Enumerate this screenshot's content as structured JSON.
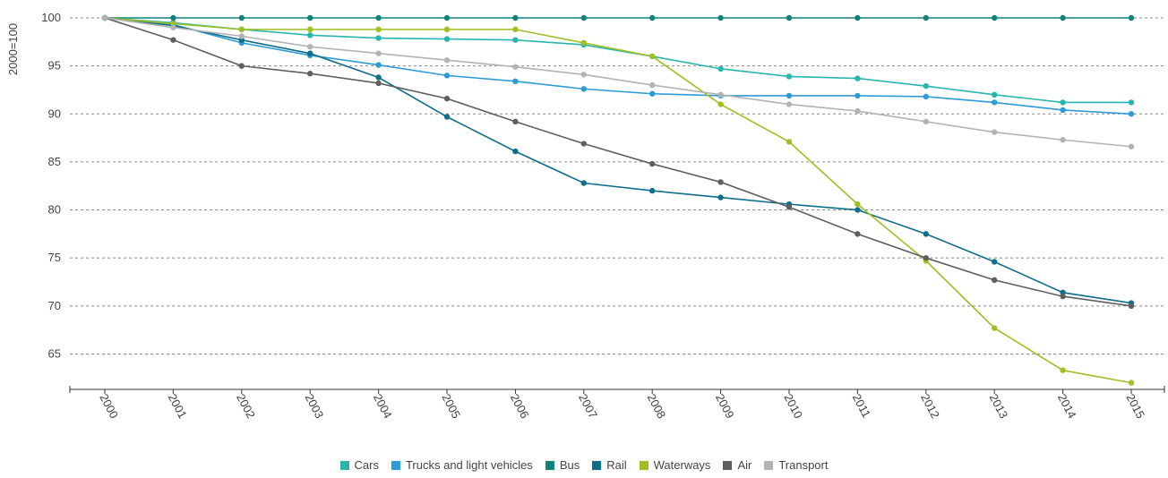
{
  "chart_data": {
    "type": "line",
    "ylabel": "2000=100",
    "xlabel": "",
    "x": [
      "2000",
      "2001",
      "2002",
      "2003",
      "2004",
      "2005",
      "2006",
      "2007",
      "2008",
      "2009",
      "2010",
      "2011",
      "2012",
      "2013",
      "2014",
      "2015"
    ],
    "yticks": [
      65,
      70,
      75,
      80,
      85,
      90,
      95,
      100
    ],
    "ylim": [
      61.5,
      100
    ],
    "grid": "horizontal-dashed",
    "legend_position": "bottom",
    "series": [
      {
        "name": "Cars",
        "color": "#27b5ae",
        "values": [
          100,
          99.5,
          98.8,
          98.2,
          97.9,
          97.8,
          97.7,
          97.2,
          96.0,
          94.7,
          93.9,
          93.7,
          92.9,
          92.0,
          91.2,
          91.2
        ]
      },
      {
        "name": "Trucks and light vehicles",
        "color": "#2d9bd6",
        "values": [
          100,
          99.3,
          97.4,
          96.1,
          95.1,
          94.0,
          93.4,
          92.6,
          92.1,
          91.9,
          91.9,
          91.9,
          91.8,
          91.2,
          90.4,
          90.0
        ]
      },
      {
        "name": "Bus",
        "color": "#11837b",
        "values": [
          100,
          100,
          100,
          100,
          100,
          100,
          100,
          100,
          100,
          100,
          100,
          100,
          100,
          100,
          100,
          100
        ]
      },
      {
        "name": "Rail",
        "color": "#0f6f8a",
        "values": [
          100,
          99.2,
          97.7,
          96.3,
          93.8,
          89.7,
          86.1,
          82.8,
          82.0,
          81.3,
          80.6,
          80.0,
          77.5,
          74.6,
          71.4,
          70.3
        ]
      },
      {
        "name": "Waterways",
        "color": "#9fbf22",
        "values": [
          100,
          99.4,
          98.8,
          98.8,
          98.8,
          98.8,
          98.8,
          97.4,
          96.0,
          91.0,
          87.1,
          80.6,
          74.7,
          67.7,
          63.3,
          62.0
        ]
      },
      {
        "name": "Air",
        "color": "#5f5f5f",
        "values": [
          100,
          97.7,
          95.0,
          94.2,
          93.2,
          91.6,
          89.2,
          86.9,
          84.8,
          82.9,
          80.3,
          77.5,
          75.0,
          72.7,
          71.0,
          70.0
        ]
      },
      {
        "name": "Transport",
        "color": "#b3b3b3",
        "values": [
          100,
          99.0,
          98.1,
          97.0,
          96.3,
          95.6,
          94.9,
          94.1,
          93.0,
          92.0,
          91.0,
          90.3,
          89.2,
          88.1,
          87.3,
          86.6
        ]
      }
    ]
  }
}
